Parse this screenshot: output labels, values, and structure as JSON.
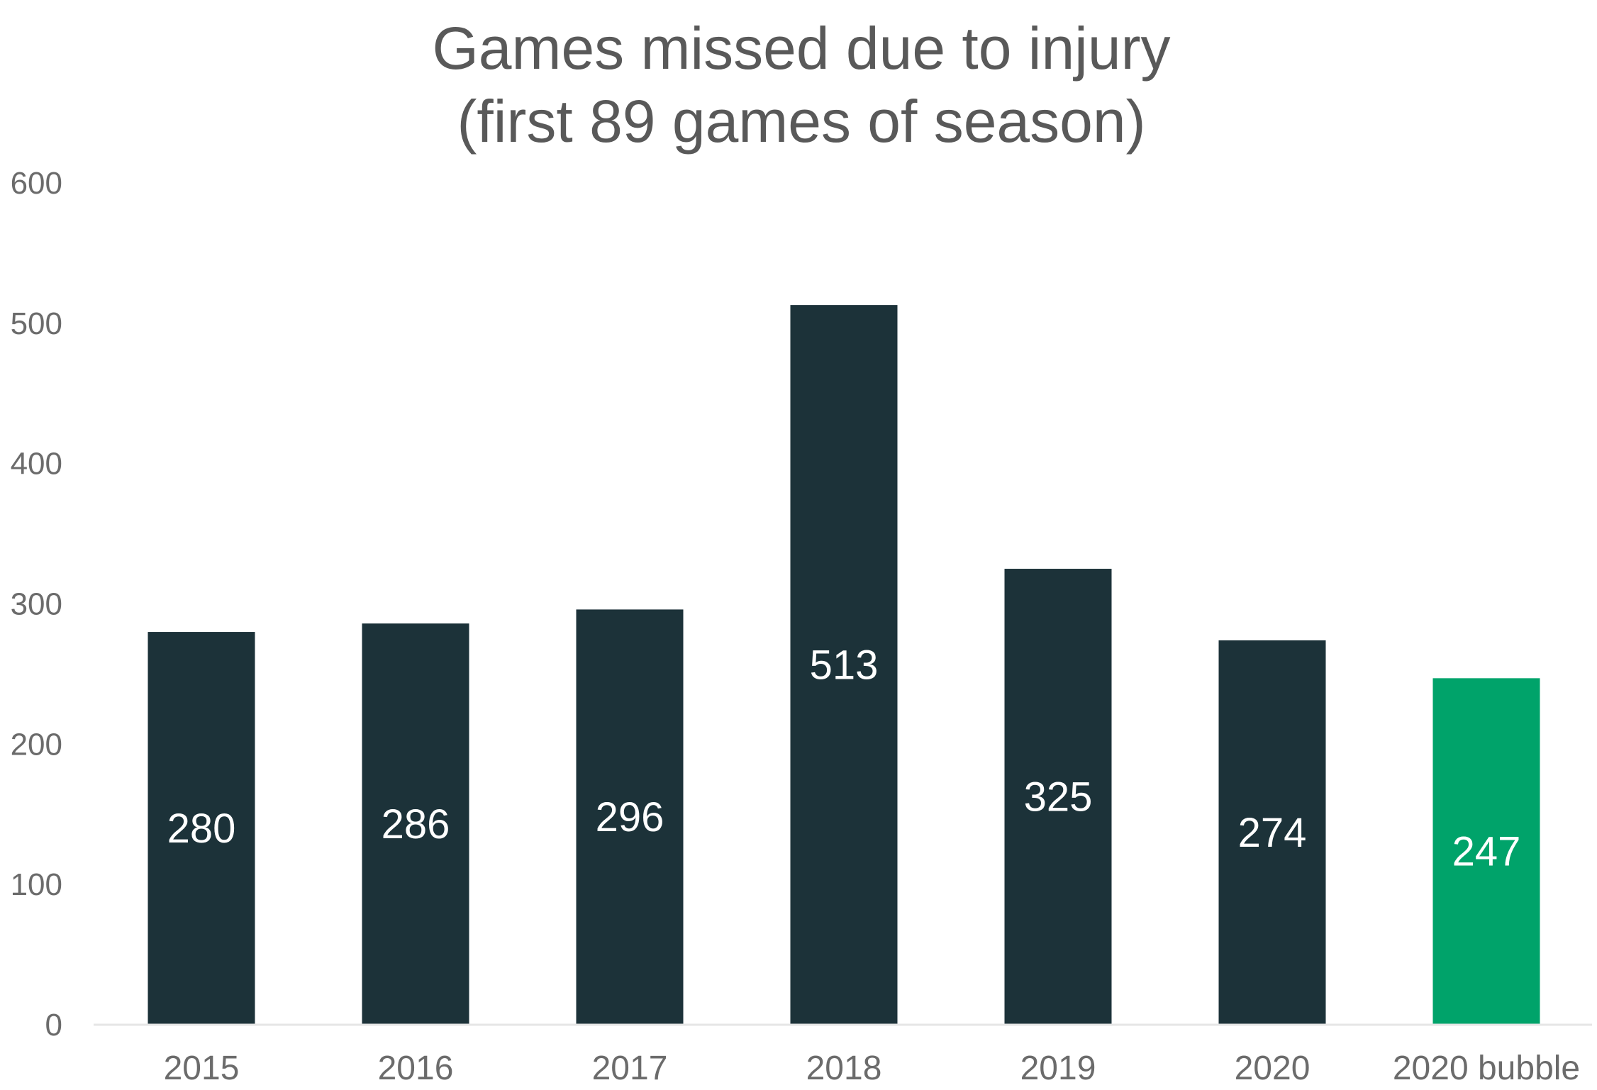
{
  "chart_data": {
    "type": "bar",
    "title": [
      "Games missed due to injury",
      "(first 89 games of season)"
    ],
    "categories": [
      "2015",
      "2016",
      "2017",
      "2018",
      "2019",
      "2020",
      "2020 bubble"
    ],
    "values": [
      280,
      286,
      296,
      513,
      325,
      274,
      247
    ],
    "data_labels": [
      "280",
      "286",
      "296",
      "513",
      "325",
      "274",
      "247"
    ],
    "ylim": [
      0,
      600
    ],
    "y_ticks": [
      0,
      100,
      200,
      300,
      400,
      500,
      600
    ],
    "y_tick_labels": [
      "0",
      "100",
      "200",
      "300",
      "400",
      "500",
      "600"
    ],
    "xlabel": "",
    "ylabel": "",
    "grid": false,
    "legend": "none",
    "colors": {
      "bar": "#1c3239",
      "highlight_bar": "#00a36a",
      "axis_line": "#e6e6e6",
      "title": "#595959",
      "tick_label": "#6b6b6b",
      "data_label": "#ffffff"
    },
    "highlight_index": 6
  }
}
